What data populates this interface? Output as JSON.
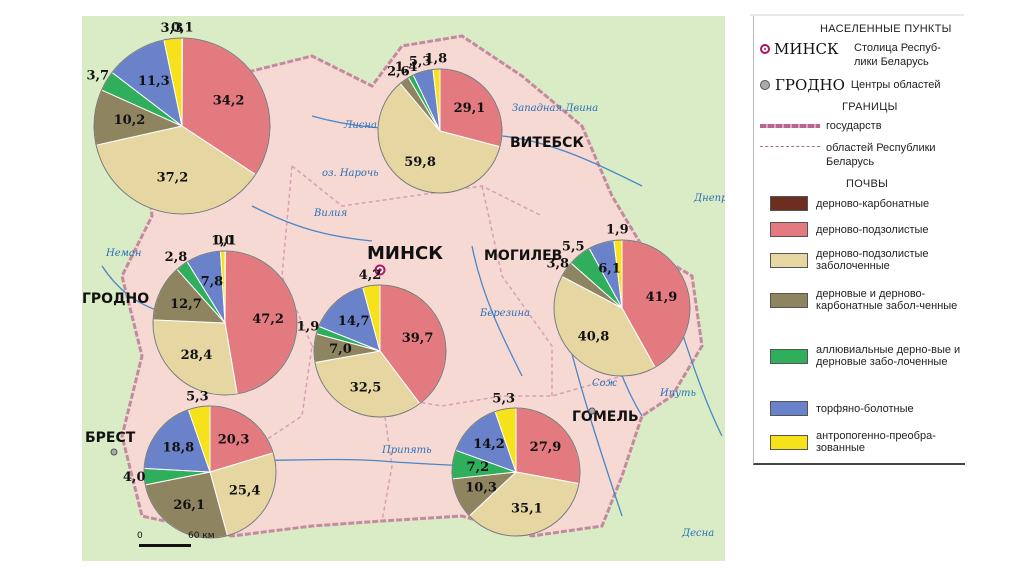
{
  "legend": {
    "settlements_title": "НАСЕЛЕННЫЕ ПУНКТЫ",
    "capital_name": "МИНСК",
    "capital_desc_1": "Столица Респуб-",
    "capital_desc_2": "лики Беларусь",
    "regional_name": "ГРОДНО",
    "regional_desc": "Центры областей",
    "borders_title": "ГРАНИЦЫ",
    "border_state": "государств",
    "border_regions_1": "областей Республики",
    "border_regions_2": "Беларусь",
    "soils_title": "ПОЧВЫ",
    "soils": [
      {
        "label": "дерново-карбонатные",
        "color": "#6b2e1f"
      },
      {
        "label": "дерново-подзолистые",
        "color": "#e27a80"
      },
      {
        "label": "дерново-подзолистые заболоченные",
        "color": "#e6d6a2"
      },
      {
        "label": "дерновые и дерново-карбонатные забол-ченные",
        "color": "#8f8460"
      },
      {
        "label": "аллювиальные дерно-вые и дерновые забо-лоченные",
        "color": "#2fae5c"
      },
      {
        "label": "торфяно-болотные",
        "color": "#6a82c9"
      },
      {
        "label": "антропогенно-преобра-зованные",
        "color": "#f5e21a"
      }
    ]
  },
  "cities": {
    "minsk": "МИНСК",
    "vitebsk": "ВИТЕБСК",
    "mogilev": "МОГИЛЕВ",
    "grodno": "ГРОДНО",
    "brest": "БРЕСТ",
    "gomel": "ГОМЕЛЬ"
  },
  "rivers": [
    "Лисна",
    "Западная Двина",
    "оз. Нарочь",
    "Вилия",
    "Березина",
    "Припять",
    "Сож",
    "Днепр",
    "Ипуть",
    "Десна",
    "Неман"
  ],
  "scale": {
    "zero": "0",
    "label": "60 км"
  },
  "chart_data": [
    {
      "type": "pie",
      "region": "Витебская",
      "slices": [
        {
          "soil": "дерново-подзолистые",
          "value": 29.1,
          "label": "29,1"
        },
        {
          "soil": "дерново-подзолистые заболоченные",
          "value": 59.8,
          "label": "59,8"
        },
        {
          "soil": "дерновые и дерново-карбонатные заболоченные",
          "value": 2.6,
          "label": "2,6"
        },
        {
          "soil": "аллювиальные дерновые и дерновые заболоченные",
          "value": 1.4,
          "label": "1,4"
        },
        {
          "soil": "торфяно-болотные",
          "value": 5.3,
          "label": "5,3"
        },
        {
          "soil": "антропогенно-преобразованные",
          "value": 1.8,
          "label": "1,8"
        }
      ]
    },
    {
      "type": "pie",
      "region": "Гродненская (север)",
      "slices": [
        {
          "soil": "дерново-карбонатные",
          "value": 0.1,
          "label": "0,1"
        },
        {
          "soil": "дерново-подзолистые",
          "value": 34.2,
          "label": "34,2"
        },
        {
          "soil": "дерново-подзолистые заболоченные",
          "value": 37.2,
          "label": "37,2"
        },
        {
          "soil": "дерновые и дерново-карбонатные заболоченные",
          "value": 10.2,
          "label": "10,2"
        },
        {
          "soil": "аллювиальные дерновые и дерновые заболоченные",
          "value": 3.7,
          "label": "3,7"
        },
        {
          "soil": "торфяно-болотные",
          "value": 11.3,
          "label": "11,3"
        },
        {
          "soil": "антропогенно-преобразованные",
          "value": 3.3,
          "label": "3,3"
        }
      ]
    },
    {
      "type": "pie",
      "region": "Гродненская",
      "slices": [
        {
          "soil": "дерново-карбонатные",
          "value": 0.1,
          "label": "0,1"
        },
        {
          "soil": "дерново-подзолистые",
          "value": 47.2,
          "label": "47,2"
        },
        {
          "soil": "дерново-подзолистые заболоченные",
          "value": 28.4,
          "label": "28,4"
        },
        {
          "soil": "дерновые и дерново-карбонатные заболоченные",
          "value": 12.7,
          "label": "12,7"
        },
        {
          "soil": "аллювиальные дерновые и дерновые заболоченные",
          "value": 2.8,
          "label": "2,8"
        },
        {
          "soil": "торфяно-болотные",
          "value": 7.8,
          "label": "7,8"
        },
        {
          "soil": "антропогенно-преобразованные",
          "value": 1.0,
          "label": "1,0"
        }
      ]
    },
    {
      "type": "pie",
      "region": "Минская",
      "slices": [
        {
          "soil": "дерново-подзолистые",
          "value": 39.7,
          "label": "39,7"
        },
        {
          "soil": "дерново-подзолистые заболоченные",
          "value": 32.5,
          "label": "32,5"
        },
        {
          "soil": "дерновые и дерново-карбонатные заболоченные",
          "value": 7.0,
          "label": "7,0"
        },
        {
          "soil": "аллювиальные дерновые и дерновые заболоченные",
          "value": 1.9,
          "label": "1,9"
        },
        {
          "soil": "торфяно-болотные",
          "value": 14.7,
          "label": "14,7"
        },
        {
          "soil": "антропогенно-преобразованные",
          "value": 4.2,
          "label": "4,2"
        }
      ]
    },
    {
      "type": "pie",
      "region": "Могилевская",
      "slices": [
        {
          "soil": "дерново-подзолистые",
          "value": 41.9,
          "label": "41,9"
        },
        {
          "soil": "дерново-подзолистые заболоченные",
          "value": 40.8,
          "label": "40,8"
        },
        {
          "soil": "дерновые и дерново-карбонатные заболоченные",
          "value": 3.8,
          "label": "3,8"
        },
        {
          "soil": "аллювиальные дерновые и дерновые заболоченные",
          "value": 5.5,
          "label": "5,5"
        },
        {
          "soil": "торфяно-болотные",
          "value": 6.1,
          "label": "6,1"
        },
        {
          "soil": "антропогенно-преобразованные",
          "value": 1.9,
          "label": "1,9"
        }
      ]
    },
    {
      "type": "pie",
      "region": "Брестская",
      "slices": [
        {
          "soil": "дерново-подзолистые",
          "value": 20.3,
          "label": "20,3"
        },
        {
          "soil": "дерново-подзолистые заболоченные",
          "value": 25.4,
          "label": "25,4"
        },
        {
          "soil": "дерновые и дерново-карбонатные заболоченные",
          "value": 26.1,
          "label": "26,1"
        },
        {
          "soil": "аллювиальные дерновые и дерновые заболоченные",
          "value": 4.0,
          "label": "4,0"
        },
        {
          "soil": "торфяно-болотные",
          "value": 18.8,
          "label": "18,8"
        },
        {
          "soil": "антропогенно-преобразованные",
          "value": 5.3,
          "label": "5,3"
        }
      ]
    },
    {
      "type": "pie",
      "region": "Гомельская",
      "slices": [
        {
          "soil": "дерново-подзолистые",
          "value": 27.9,
          "label": "27,9"
        },
        {
          "soil": "дерново-подзолистые заболоченные",
          "value": 35.1,
          "label": "35,1"
        },
        {
          "soil": "дерновые и дерново-карбонатные заболоченные",
          "value": 10.3,
          "label": "10,3"
        },
        {
          "soil": "аллювиальные дерновые и дерновые заболоченные",
          "value": 7.2,
          "label": "7,2"
        },
        {
          "soil": "торфяно-болотные",
          "value": 14.2,
          "label": "14,2"
        },
        {
          "soil": "антропогенно-преобразованные",
          "value": 5.3,
          "label": "5,3"
        }
      ]
    }
  ]
}
